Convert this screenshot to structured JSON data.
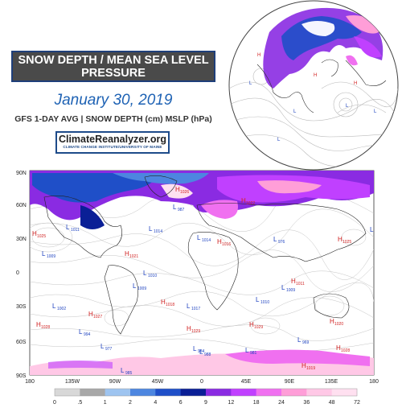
{
  "header": {
    "title_line1": "SNOW DEPTH / MEAN SEA LEVEL",
    "title_line2": "PRESSURE",
    "date": "January 30, 2019",
    "subtitle": "GFS 1-DAY AVG  |  SNOW DEPTH (cm) MSLP (hPa)",
    "logo_main": "ClimateReanalyzer.org",
    "logo_sub": "CLIMATE CHANGE INSTITUTE/UNIVERSITY OF MAINE"
  },
  "map": {
    "lat_labels": [
      "90N",
      "60N",
      "30N",
      "0",
      "30S",
      "60S",
      "90S"
    ],
    "lon_labels": [
      "180",
      "135W",
      "90W",
      "45W",
      "0",
      "45E",
      "90E",
      "135E",
      "180"
    ],
    "pressure_highs": [
      {
        "label": "H",
        "value": "1025"
      },
      {
        "label": "H",
        "value": "1026"
      },
      {
        "label": "H",
        "value": "1022"
      },
      {
        "label": "H",
        "value": "1016"
      },
      {
        "label": "H",
        "value": "1025"
      },
      {
        "label": "H",
        "value": "1021"
      },
      {
        "label": "H",
        "value": "1027"
      },
      {
        "label": "H",
        "value": "1028"
      },
      {
        "label": "H",
        "value": "1018"
      },
      {
        "label": "H",
        "value": "1029"
      },
      {
        "label": "H",
        "value": "1029"
      },
      {
        "label": "H",
        "value": "1020"
      },
      {
        "label": "H",
        "value": "1011"
      },
      {
        "label": "H",
        "value": "1028"
      },
      {
        "label": "H",
        "value": "1019"
      }
    ],
    "pressure_lows": [
      {
        "label": "L",
        "value": "1011"
      },
      {
        "label": "L",
        "value": "1014"
      },
      {
        "label": "L",
        "value": "1009"
      },
      {
        "label": "L",
        "value": "1014"
      },
      {
        "label": "L",
        "value": "1010"
      },
      {
        "label": "L",
        "value": "1009"
      },
      {
        "label": "L",
        "value": "1002"
      },
      {
        "label": "L",
        "value": "1017"
      },
      {
        "label": "L",
        "value": "994"
      },
      {
        "label": "L",
        "value": "977"
      },
      {
        "label": "L",
        "value": "984"
      },
      {
        "label": "L",
        "value": "981"
      },
      {
        "label": "L",
        "value": "969"
      },
      {
        "label": "L",
        "value": "988"
      },
      {
        "label": "L",
        "value": "987"
      },
      {
        "label": "L",
        "value": "976"
      },
      {
        "label": "L",
        "value": "980"
      },
      {
        "label": "L",
        "value": "1010"
      },
      {
        "label": "L",
        "value": "1009"
      },
      {
        "label": "L",
        "value": "985"
      }
    ]
  },
  "colorbar": {
    "labels": [
      "0",
      ".5",
      "1",
      "2",
      "4",
      "6",
      "9",
      "12",
      "18",
      "24",
      "36",
      "48",
      "72"
    ],
    "colors": [
      "#ffffff",
      "#d8d8d8",
      "#a8a8a8",
      "#9ec4f0",
      "#4d86e0",
      "#1f4fc8",
      "#0a1f96",
      "#8a2be2",
      "#c040ff",
      "#f070f0",
      "#ff9ed8",
      "#ffc8e6",
      "#ffe0f0"
    ]
  }
}
